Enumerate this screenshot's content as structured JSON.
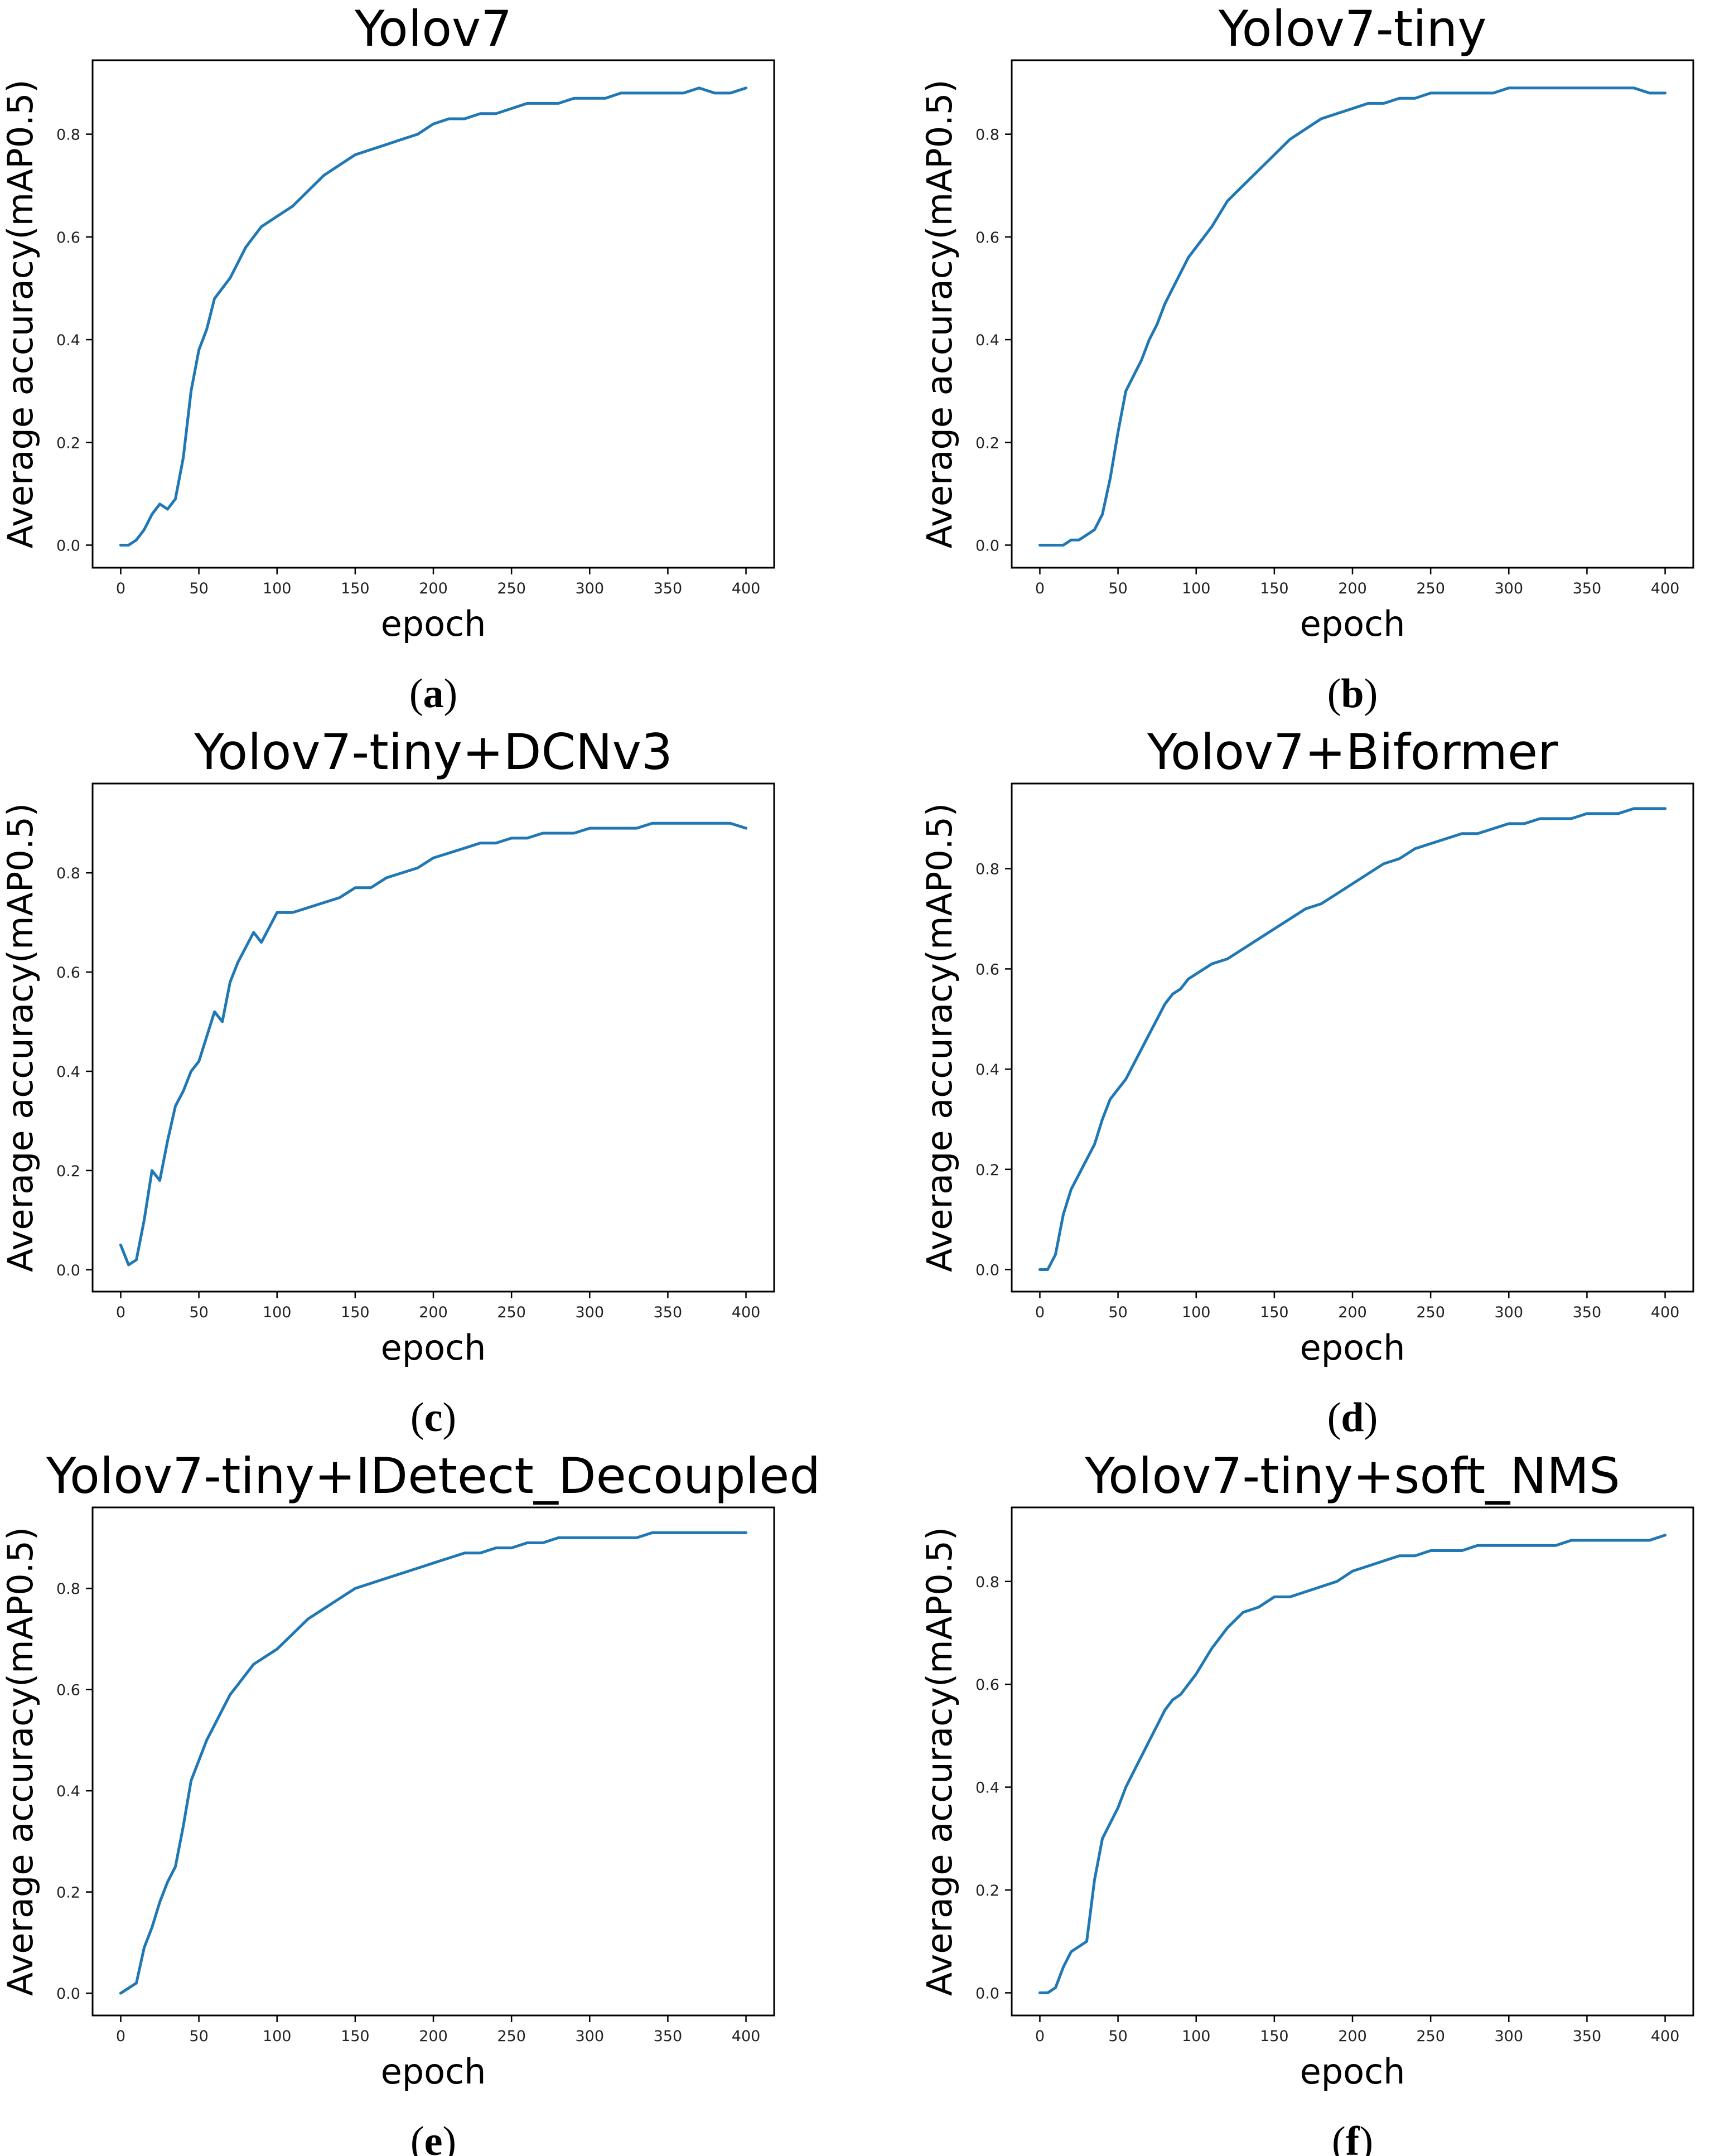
{
  "colors": {
    "series": "#1f77b4",
    "axis": "#000000",
    "background": "#ffffff"
  },
  "chart_data": [
    {
      "type": "line",
      "panel_label": "a",
      "title": "Yolov7",
      "xlabel": "epoch",
      "ylabel": "Average accuracy(mAP0.5)",
      "xlim": [
        -18,
        418
      ],
      "ylim": [
        -0.044,
        0.944
      ],
      "xticks": [
        0,
        50,
        100,
        150,
        200,
        250,
        300,
        350,
        400
      ],
      "yticks": [
        0.0,
        0.2,
        0.4,
        0.6,
        0.8
      ],
      "grid": false,
      "series": [
        {
          "name": "mAP0.5",
          "x": [
            0,
            5,
            10,
            15,
            20,
            25,
            30,
            35,
            40,
            45,
            50,
            55,
            60,
            65,
            70,
            75,
            80,
            85,
            90,
            95,
            100,
            110,
            120,
            130,
            140,
            150,
            160,
            170,
            180,
            190,
            200,
            210,
            220,
            230,
            240,
            250,
            260,
            270,
            280,
            290,
            300,
            310,
            320,
            330,
            340,
            350,
            360,
            370,
            380,
            390,
            400
          ],
          "y": [
            0.0,
            0.0,
            0.01,
            0.03,
            0.06,
            0.08,
            0.07,
            0.09,
            0.17,
            0.3,
            0.38,
            0.42,
            0.48,
            0.5,
            0.52,
            0.55,
            0.58,
            0.6,
            0.62,
            0.63,
            0.64,
            0.66,
            0.69,
            0.72,
            0.74,
            0.76,
            0.77,
            0.78,
            0.79,
            0.8,
            0.82,
            0.83,
            0.83,
            0.84,
            0.84,
            0.85,
            0.86,
            0.86,
            0.86,
            0.87,
            0.87,
            0.87,
            0.88,
            0.88,
            0.88,
            0.88,
            0.88,
            0.89,
            0.88,
            0.88,
            0.89
          ]
        }
      ]
    },
    {
      "type": "line",
      "panel_label": "b",
      "title": "Yolov7-tiny",
      "xlabel": "epoch",
      "ylabel": "Average accuracy(mAP0.5)",
      "xlim": [
        -18,
        418
      ],
      "ylim": [
        -0.044,
        0.944
      ],
      "xticks": [
        0,
        50,
        100,
        150,
        200,
        250,
        300,
        350,
        400
      ],
      "yticks": [
        0.0,
        0.2,
        0.4,
        0.6,
        0.8
      ],
      "grid": false,
      "series": [
        {
          "name": "mAP0.5",
          "x": [
            0,
            5,
            10,
            15,
            20,
            25,
            30,
            35,
            40,
            45,
            50,
            55,
            60,
            65,
            70,
            75,
            80,
            85,
            90,
            95,
            100,
            110,
            120,
            130,
            140,
            150,
            160,
            170,
            180,
            190,
            200,
            210,
            220,
            230,
            240,
            250,
            260,
            270,
            280,
            290,
            300,
            310,
            320,
            330,
            340,
            350,
            360,
            370,
            380,
            390,
            400
          ],
          "y": [
            0.0,
            0.0,
            0.0,
            0.0,
            0.01,
            0.01,
            0.02,
            0.03,
            0.06,
            0.13,
            0.22,
            0.3,
            0.33,
            0.36,
            0.4,
            0.43,
            0.47,
            0.5,
            0.53,
            0.56,
            0.58,
            0.62,
            0.67,
            0.7,
            0.73,
            0.76,
            0.79,
            0.81,
            0.83,
            0.84,
            0.85,
            0.86,
            0.86,
            0.87,
            0.87,
            0.88,
            0.88,
            0.88,
            0.88,
            0.88,
            0.89,
            0.89,
            0.89,
            0.89,
            0.89,
            0.89,
            0.89,
            0.89,
            0.89,
            0.88,
            0.88
          ]
        }
      ]
    },
    {
      "type": "line",
      "panel_label": "c",
      "title": "Yolov7-tiny+DCNv3",
      "xlabel": "epoch",
      "ylabel": "Average accuracy(mAP0.5)",
      "xlim": [
        -18,
        418
      ],
      "ylim": [
        -0.044,
        0.98
      ],
      "xticks": [
        0,
        50,
        100,
        150,
        200,
        250,
        300,
        350,
        400
      ],
      "yticks": [
        0.0,
        0.2,
        0.4,
        0.6,
        0.8
      ],
      "grid": false,
      "series": [
        {
          "name": "mAP0.5",
          "x": [
            0,
            5,
            10,
            15,
            20,
            25,
            30,
            35,
            40,
            45,
            50,
            55,
            60,
            65,
            70,
            75,
            80,
            85,
            90,
            95,
            100,
            110,
            120,
            130,
            140,
            150,
            160,
            170,
            180,
            190,
            200,
            210,
            220,
            230,
            240,
            250,
            260,
            270,
            280,
            290,
            300,
            310,
            320,
            330,
            340,
            350,
            360,
            370,
            380,
            390,
            400
          ],
          "y": [
            0.05,
            0.01,
            0.02,
            0.1,
            0.2,
            0.18,
            0.26,
            0.33,
            0.36,
            0.4,
            0.42,
            0.47,
            0.52,
            0.5,
            0.58,
            0.62,
            0.65,
            0.68,
            0.66,
            0.69,
            0.72,
            0.72,
            0.73,
            0.74,
            0.75,
            0.77,
            0.77,
            0.79,
            0.8,
            0.81,
            0.83,
            0.84,
            0.85,
            0.86,
            0.86,
            0.87,
            0.87,
            0.88,
            0.88,
            0.88,
            0.89,
            0.89,
            0.89,
            0.89,
            0.9,
            0.9,
            0.9,
            0.9,
            0.9,
            0.9,
            0.89
          ]
        }
      ]
    },
    {
      "type": "line",
      "panel_label": "d",
      "title": "Yolov7+Biformer",
      "xlabel": "epoch",
      "ylabel": "Average accuracy(mAP0.5)",
      "xlim": [
        -18,
        418
      ],
      "ylim": [
        -0.044,
        0.97
      ],
      "xticks": [
        0,
        50,
        100,
        150,
        200,
        250,
        300,
        350,
        400
      ],
      "yticks": [
        0.0,
        0.2,
        0.4,
        0.6,
        0.8
      ],
      "grid": false,
      "series": [
        {
          "name": "mAP0.5",
          "x": [
            0,
            5,
            10,
            15,
            20,
            25,
            30,
            35,
            40,
            45,
            50,
            55,
            60,
            65,
            70,
            75,
            80,
            85,
            90,
            95,
            100,
            110,
            120,
            130,
            140,
            150,
            160,
            170,
            180,
            190,
            200,
            210,
            220,
            230,
            240,
            250,
            260,
            270,
            280,
            290,
            300,
            310,
            320,
            330,
            340,
            350,
            360,
            370,
            380,
            390,
            400
          ],
          "y": [
            0.0,
            0.0,
            0.03,
            0.11,
            0.16,
            0.19,
            0.22,
            0.25,
            0.3,
            0.34,
            0.36,
            0.38,
            0.41,
            0.44,
            0.47,
            0.5,
            0.53,
            0.55,
            0.56,
            0.58,
            0.59,
            0.61,
            0.62,
            0.64,
            0.66,
            0.68,
            0.7,
            0.72,
            0.73,
            0.75,
            0.77,
            0.79,
            0.81,
            0.82,
            0.84,
            0.85,
            0.86,
            0.87,
            0.87,
            0.88,
            0.89,
            0.89,
            0.9,
            0.9,
            0.9,
            0.91,
            0.91,
            0.91,
            0.92,
            0.92,
            0.92
          ]
        }
      ]
    },
    {
      "type": "line",
      "panel_label": "e",
      "title": "Yolov7-tiny+IDetect_Decoupled",
      "xlabel": "epoch",
      "ylabel": "Average accuracy(mAP0.5)",
      "xlim": [
        -18,
        418
      ],
      "ylim": [
        -0.044,
        0.96
      ],
      "xticks": [
        0,
        50,
        100,
        150,
        200,
        250,
        300,
        350,
        400
      ],
      "yticks": [
        0.0,
        0.2,
        0.4,
        0.6,
        0.8
      ],
      "grid": false,
      "series": [
        {
          "name": "mAP0.5",
          "x": [
            0,
            5,
            10,
            15,
            20,
            25,
            30,
            35,
            40,
            45,
            50,
            55,
            60,
            65,
            70,
            75,
            80,
            85,
            90,
            95,
            100,
            110,
            120,
            130,
            140,
            150,
            160,
            170,
            180,
            190,
            200,
            210,
            220,
            230,
            240,
            250,
            260,
            270,
            280,
            290,
            300,
            310,
            320,
            330,
            340,
            350,
            360,
            370,
            380,
            390,
            400
          ],
          "y": [
            0.0,
            0.01,
            0.02,
            0.09,
            0.13,
            0.18,
            0.22,
            0.25,
            0.33,
            0.42,
            0.46,
            0.5,
            0.53,
            0.56,
            0.59,
            0.61,
            0.63,
            0.65,
            0.66,
            0.67,
            0.68,
            0.71,
            0.74,
            0.76,
            0.78,
            0.8,
            0.81,
            0.82,
            0.83,
            0.84,
            0.85,
            0.86,
            0.87,
            0.87,
            0.88,
            0.88,
            0.89,
            0.89,
            0.9,
            0.9,
            0.9,
            0.9,
            0.9,
            0.9,
            0.91,
            0.91,
            0.91,
            0.91,
            0.91,
            0.91,
            0.91
          ]
        }
      ]
    },
    {
      "type": "line",
      "panel_label": "f",
      "title": "Yolov7-tiny+soft_NMS",
      "xlabel": "epoch",
      "ylabel": "Average accuracy(mAP0.5)",
      "xlim": [
        -18,
        418
      ],
      "ylim": [
        -0.044,
        0.944
      ],
      "xticks": [
        0,
        50,
        100,
        150,
        200,
        250,
        300,
        350,
        400
      ],
      "yticks": [
        0.0,
        0.2,
        0.4,
        0.6,
        0.8
      ],
      "grid": false,
      "series": [
        {
          "name": "mAP0.5",
          "x": [
            0,
            5,
            10,
            15,
            20,
            25,
            30,
            35,
            40,
            45,
            50,
            55,
            60,
            65,
            70,
            75,
            80,
            85,
            90,
            95,
            100,
            110,
            120,
            130,
            140,
            150,
            160,
            170,
            180,
            190,
            200,
            210,
            220,
            230,
            240,
            250,
            260,
            270,
            280,
            290,
            300,
            310,
            320,
            330,
            340,
            350,
            360,
            370,
            380,
            390,
            400
          ],
          "y": [
            0.0,
            0.0,
            0.01,
            0.05,
            0.08,
            0.09,
            0.1,
            0.22,
            0.3,
            0.33,
            0.36,
            0.4,
            0.43,
            0.46,
            0.49,
            0.52,
            0.55,
            0.57,
            0.58,
            0.6,
            0.62,
            0.67,
            0.71,
            0.74,
            0.75,
            0.77,
            0.77,
            0.78,
            0.79,
            0.8,
            0.82,
            0.83,
            0.84,
            0.85,
            0.85,
            0.86,
            0.86,
            0.86,
            0.87,
            0.87,
            0.87,
            0.87,
            0.87,
            0.87,
            0.88,
            0.88,
            0.88,
            0.88,
            0.88,
            0.88,
            0.89
          ]
        }
      ]
    }
  ]
}
